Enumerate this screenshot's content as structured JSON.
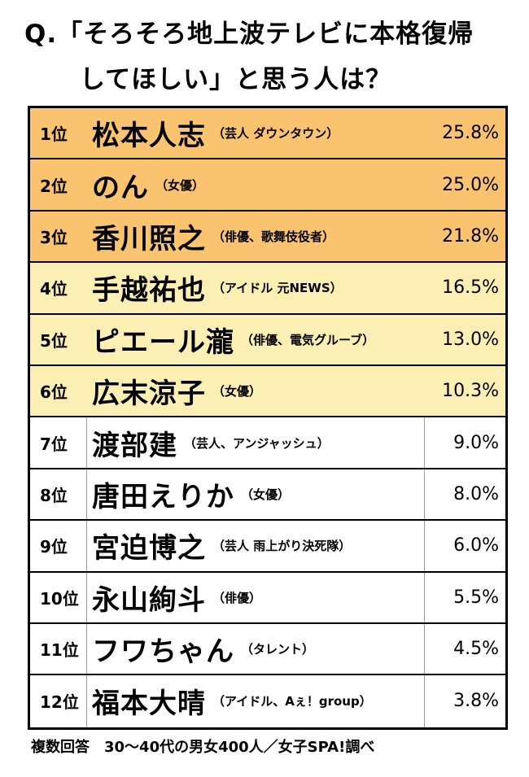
{
  "question": {
    "line1": "Q.「そろそろ地上波テレビに本格復帰",
    "line2": "してほしい」と思う人は？"
  },
  "colors": {
    "top_tier": "#f9c36f",
    "mid_tier": "#fcefb3",
    "low_tier": "#ffffff"
  },
  "ranking": [
    {
      "rank": "1位",
      "name": "松本人志",
      "note": "（芸人 ダウンタウン）",
      "percent": "25.8%",
      "tier": 1
    },
    {
      "rank": "2位",
      "name": "のん",
      "note": "（女優）",
      "percent": "25.0%",
      "tier": 1
    },
    {
      "rank": "3位",
      "name": "香川照之",
      "note": "（俳優、歌舞伎役者）",
      "percent": "21.8%",
      "tier": 1
    },
    {
      "rank": "4位",
      "name": "手越祐也",
      "note": "（アイドル 元NEWS）",
      "percent": "16.5%",
      "tier": 2
    },
    {
      "rank": "5位",
      "name": "ピエール瀧",
      "note": "（俳優、電気グルーブ）",
      "percent": "13.0%",
      "tier": 2
    },
    {
      "rank": "6位",
      "name": "広末涼子",
      "note": "（女優）",
      "percent": "10.3%",
      "tier": 2
    },
    {
      "rank": "7位",
      "name": "渡部建",
      "note": "（芸人、アンジャッシュ）",
      "percent": "9.0%",
      "tier": 3
    },
    {
      "rank": "8位",
      "name": "唐田えりか",
      "note": "（女優）",
      "percent": "8.0%",
      "tier": 3
    },
    {
      "rank": "9位",
      "name": "宮迫博之",
      "note": "（芸人 雨上がり決死隊）",
      "percent": "6.0%",
      "tier": 3
    },
    {
      "rank": "10位",
      "name": "永山絢斗",
      "note": "（俳優）",
      "percent": "5.5%",
      "tier": 3
    },
    {
      "rank": "11位",
      "name": "フワちゃん",
      "note": "（タレント）",
      "percent": "4.5%",
      "tier": 3
    },
    {
      "rank": "12位",
      "name": "福本大晴",
      "note": "（アイドル、Aぇ！group）",
      "percent": "3.8%",
      "tier": 3
    }
  ],
  "footer": "複数回答　30〜40代の男女400人／女子SPA!調べ"
}
